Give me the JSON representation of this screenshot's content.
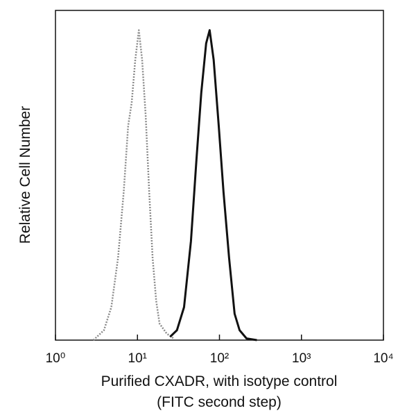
{
  "chart_data": {
    "type": "line",
    "x_label": [
      "Purified CXADR, with isotype control",
      "(FITC second step)"
    ],
    "y_label": "Relative Cell Number",
    "xscale": "log",
    "xlim": [
      1,
      10000
    ],
    "ylim": [
      0,
      100
    ],
    "xticks": [
      {
        "value": 1,
        "label": "10⁰"
      },
      {
        "value": 10,
        "label": "10¹"
      },
      {
        "value": 100,
        "label": "10²"
      },
      {
        "value": 1000,
        "label": "10³"
      },
      {
        "value": 10000,
        "label": "10⁴"
      }
    ],
    "grid": false,
    "series": [
      {
        "color": "#8a8a8a",
        "dashed": true,
        "x": [
          2.9,
          3.9,
          4.8,
          5.8,
          6.8,
          7.7,
          8.5,
          9.4,
          10.4,
          11.4,
          12.6,
          13.9,
          15.3,
          16.9,
          18.6,
          22.7,
          27.6
        ],
        "values": [
          0,
          3,
          10,
          25,
          45,
          65,
          72,
          85,
          94,
          85,
          68,
          45,
          25,
          12,
          5,
          2,
          0.5
        ]
      },
      {
        "color": "#111111",
        "dashed": false,
        "x": [
          25,
          30.3,
          37,
          44.9,
          52.5,
          60,
          68.8,
          75.9,
          85,
          98,
          112,
          131,
          153,
          176,
          214,
          286
        ],
        "values": [
          1,
          3,
          10,
          30,
          55,
          75,
          90,
          94,
          85,
          65,
          45,
          25,
          8,
          3,
          0.5,
          0
        ]
      }
    ]
  }
}
